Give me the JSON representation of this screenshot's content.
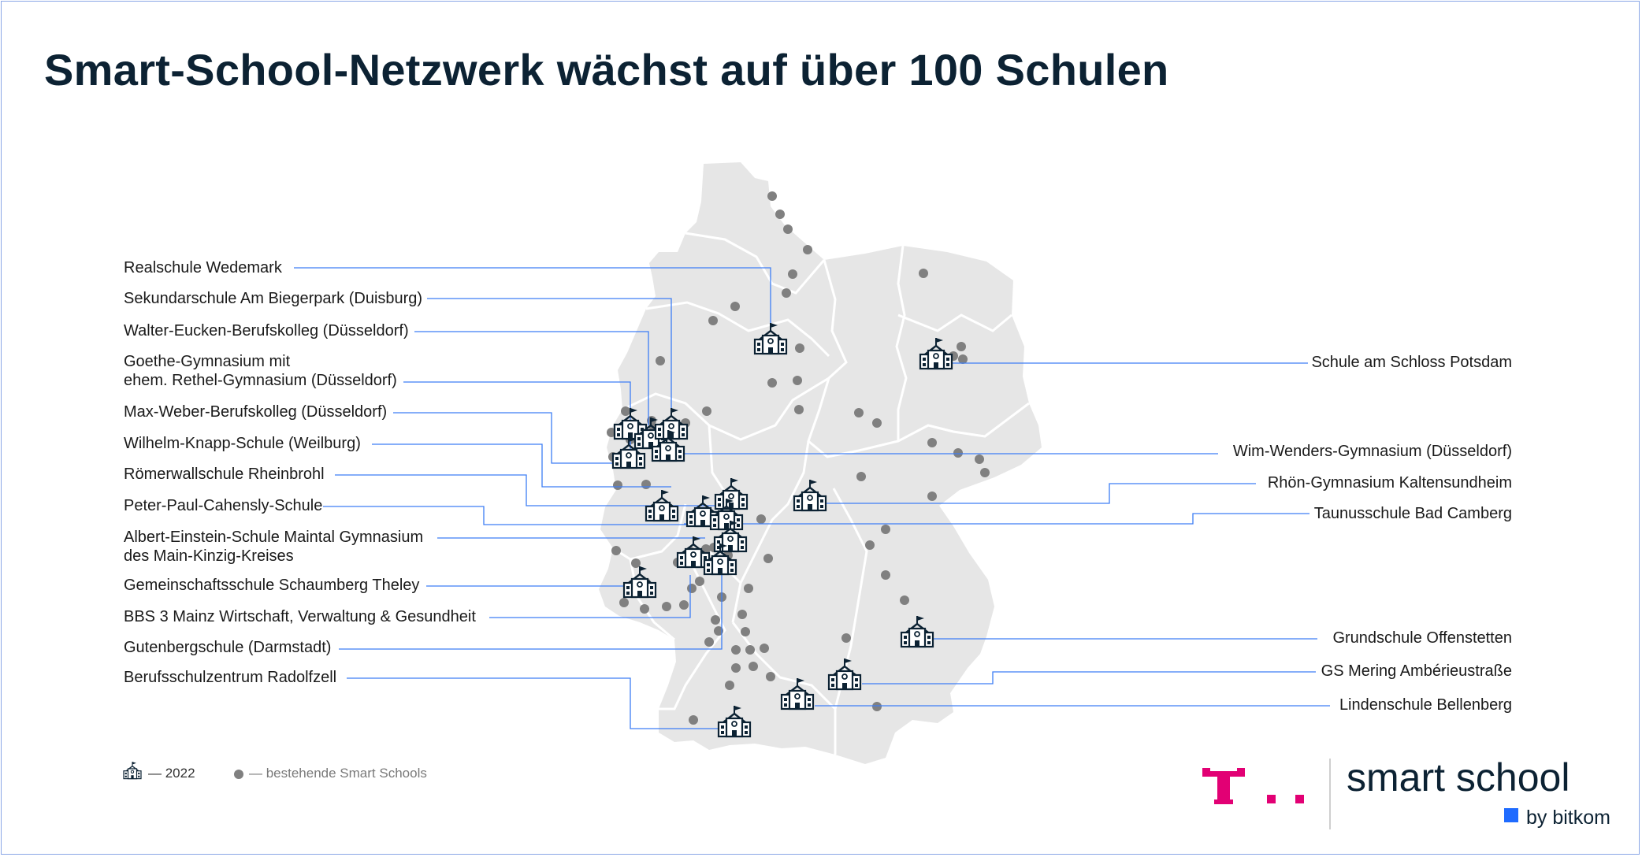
{
  "title": "Smart-School-Netzwerk wächst auf über 100 Schulen",
  "colors": {
    "title": "#0c2233",
    "map_fill": "#e6e6e6",
    "border_lines": "#ffffff",
    "dot": "#808080",
    "leader_line": "#3d7ef5",
    "telekom_magenta": "#e20074",
    "bitkom_blue": "#1f6bff"
  },
  "labels_left": [
    "Realschule Wedemark",
    "Sekundarschule Am Biegerpark (Duisburg)",
    "Walter-Eucken-Berufskolleg (Düsseldorf)",
    "Goethe-Gymnasium mit",
    "ehem. Rethel-Gymnasium (Düsseldorf)",
    "Max-Weber-Berufskolleg (Düsseldorf)",
    "Wilhelm-Knapp-Schule (Weilburg)",
    "Römerwallschule Rheinbrohl",
    "Peter-Paul-Cahensly-Schule",
    "Albert-Einstein-Schule Maintal Gymnasium",
    "des Main-Kinzig-Kreises",
    "Gemeinschaftsschule Schaumberg Theley",
    "BBS 3 Mainz Wirtschaft, Verwaltung & Gesundheit",
    "Gutenbergschule (Darmstadt)",
    "Berufsschulzentrum Radolfzell"
  ],
  "labels_right": [
    "Schule am Schloss Potsdam",
    "Wim-Wenders-Gymnasium (Düsseldorf)",
    "Rhön-Gymnasium Kaltensundheim",
    "Taunusschule Bad Camberg",
    "Grundschule Offenstetten",
    "GS Mering Ambérieustraße",
    "Lindenschule Bellenberg"
  ],
  "legend": {
    "new_label": "— 2022",
    "existing_label": "— bestehende Smart Schools",
    "new_icon": "school-icon",
    "existing_icon": "grey-dot"
  },
  "brand": {
    "name": "smart school",
    "sub": "by bitkom"
  }
}
